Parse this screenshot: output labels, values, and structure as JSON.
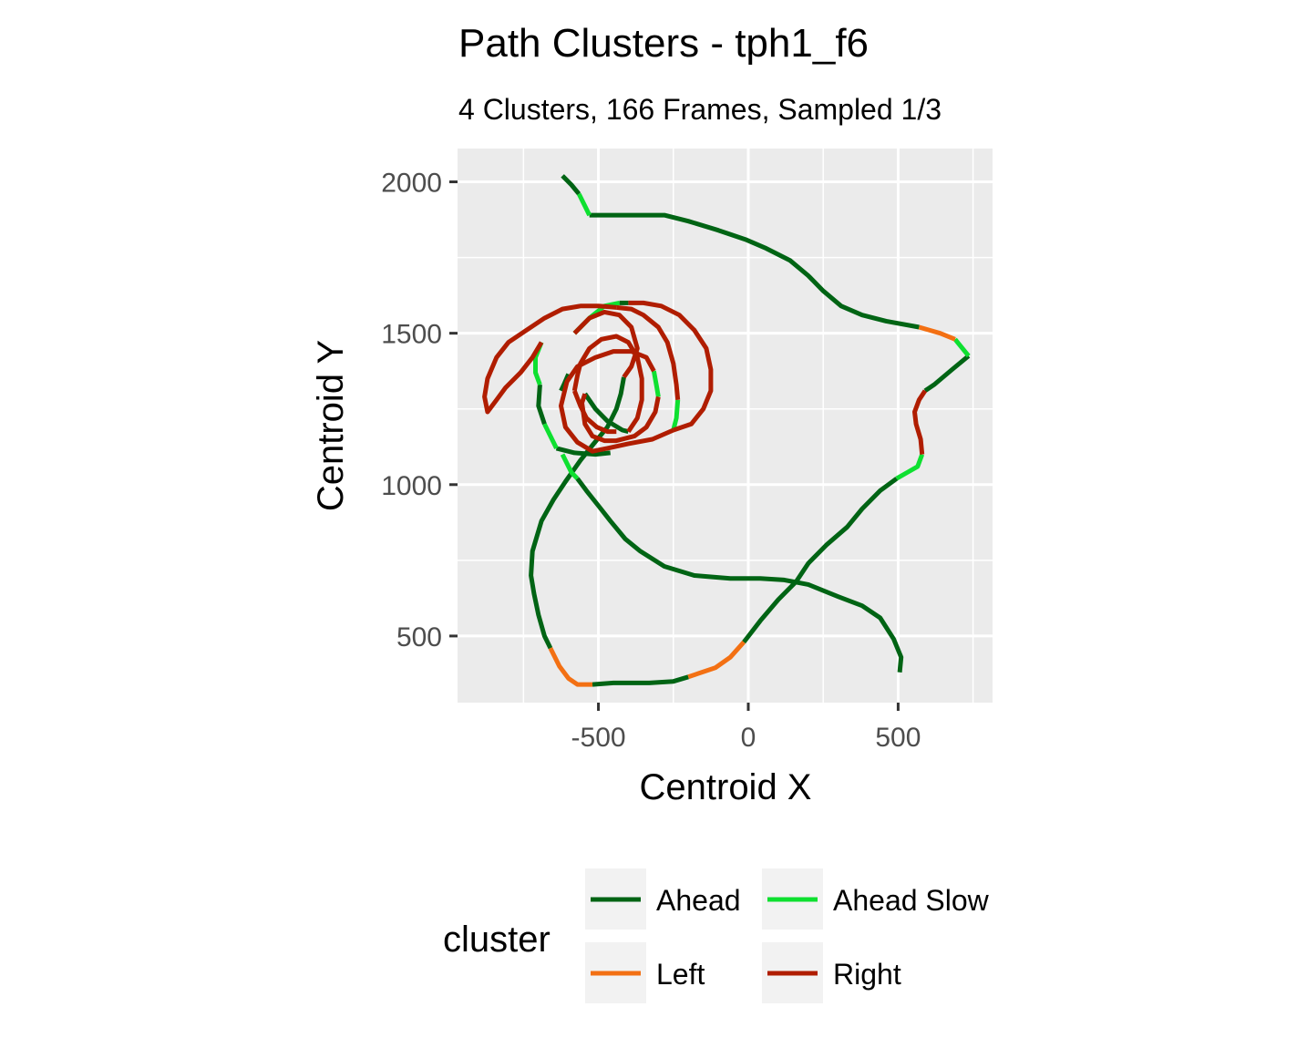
{
  "chart_data": {
    "type": "line",
    "title": "Path Clusters - tph1_f6",
    "subtitle": "4 Clusters, 166 Frames, Sampled 1/3",
    "xlabel": "Centroid X",
    "ylabel": "Centroid Y",
    "xlim": [
      -970,
      815
    ],
    "ylim": [
      280,
      2110
    ],
    "x_ticks": [
      -500,
      0,
      500
    ],
    "x_tick_labels": [
      "-500",
      "0",
      "500"
    ],
    "y_ticks": [
      500,
      1000,
      1500,
      2000
    ],
    "y_tick_labels": [
      "500",
      "1000",
      "1500",
      "2000"
    ],
    "grid": true,
    "legend": {
      "title": "cluster",
      "placement": "bottom",
      "entries": [
        {
          "label": "Ahead",
          "color": "#006414"
        },
        {
          "label": "Ahead Slow",
          "color": "#0ee030"
        },
        {
          "label": "Left",
          "color": "#f37013"
        },
        {
          "label": "Right",
          "color": "#b01d00"
        }
      ]
    },
    "series": [
      {
        "name": "Ahead",
        "color": "#006414",
        "segments": [
          [
            [
              -620,
              2020
            ],
            [
              -590,
              1990
            ],
            [
              -565,
              1960
            ]
          ],
          [
            [
              -530,
              1890
            ],
            [
              -400,
              1890
            ],
            [
              -280,
              1890
            ],
            [
              -200,
              1870
            ],
            [
              -100,
              1840
            ],
            [
              -10,
              1810
            ],
            [
              60,
              1780
            ],
            [
              140,
              1740
            ],
            [
              200,
              1690
            ],
            [
              250,
              1640
            ],
            [
              310,
              1590
            ],
            [
              380,
              1560
            ],
            [
              460,
              1540
            ],
            [
              570,
              1520
            ]
          ],
          [
            [
              735,
              1425
            ],
            [
              680,
              1380
            ],
            [
              620,
              1330
            ],
            [
              590,
              1310
            ]
          ],
          [
            [
              495,
              1020
            ],
            [
              440,
              980
            ],
            [
              380,
              920
            ],
            [
              330,
              860
            ],
            [
              260,
              800
            ],
            [
              200,
              740
            ],
            [
              160,
              680
            ],
            [
              100,
              620
            ],
            [
              40,
              550
            ],
            [
              -15,
              480
            ]
          ],
          [
            [
              -430,
              1600
            ],
            [
              -400,
              1600
            ]
          ],
          [
            [
              -600,
              1365
            ],
            [
              -615,
              1330
            ],
            [
              -625,
              1310
            ]
          ],
          [
            [
              -545,
              1300
            ],
            [
              -510,
              1250
            ],
            [
              -470,
              1210
            ],
            [
              -420,
              1180
            ],
            [
              -400,
              1175
            ]
          ],
          [
            [
              -695,
              1330
            ],
            [
              -700,
              1260
            ],
            [
              -680,
              1200
            ]
          ],
          [
            [
              -640,
              1120
            ],
            [
              -580,
              1105
            ],
            [
              -510,
              1100
            ],
            [
              -460,
              1105
            ]
          ],
          [
            [
              -415,
              1355
            ],
            [
              -425,
              1300
            ],
            [
              -440,
              1250
            ],
            [
              -470,
              1190
            ],
            [
              -520,
              1130
            ],
            [
              -560,
              1080
            ],
            [
              -610,
              1010
            ],
            [
              -650,
              950
            ],
            [
              -690,
              880
            ],
            [
              -720,
              780
            ],
            [
              -725,
              700
            ],
            [
              -715,
              640
            ],
            [
              -700,
              570
            ],
            [
              -680,
              500
            ],
            [
              -660,
              460
            ]
          ],
          [
            [
              -570,
              1020
            ],
            [
              -540,
              980
            ],
            [
              -500,
              930
            ],
            [
              -460,
              880
            ],
            [
              -410,
              820
            ],
            [
              -360,
              780
            ],
            [
              -280,
              730
            ],
            [
              -180,
              700
            ],
            [
              -60,
              690
            ],
            [
              40,
              690
            ],
            [
              120,
              685
            ],
            [
              200,
              670
            ],
            [
              300,
              630
            ],
            [
              380,
              600
            ],
            [
              440,
              560
            ],
            [
              485,
              490
            ],
            [
              510,
              430
            ],
            [
              505,
              380
            ]
          ],
          [
            [
              -520,
              340
            ],
            [
              -450,
              345
            ],
            [
              -330,
              345
            ],
            [
              -250,
              350
            ],
            [
              -200,
              365
            ]
          ]
        ]
      },
      {
        "name": "Ahead Slow",
        "color": "#0ee030",
        "segments": [
          [
            [
              -565,
              1960
            ],
            [
              -545,
              1920
            ],
            [
              -530,
              1890
            ]
          ],
          [
            [
              690,
              1480
            ],
            [
              735,
              1425
            ]
          ],
          [
            [
              580,
              1100
            ],
            [
              565,
              1060
            ],
            [
              530,
              1040
            ],
            [
              495,
              1020
            ]
          ],
          [
            [
              -580,
              1500
            ],
            [
              -530,
              1550
            ],
            [
              -480,
              1590
            ],
            [
              -430,
              1600
            ]
          ],
          [
            [
              -315,
              1375
            ],
            [
              -305,
              1320
            ],
            [
              -300,
              1290
            ]
          ],
          [
            [
              -235,
              1280
            ],
            [
              -240,
              1220
            ],
            [
              -250,
              1180
            ]
          ],
          [
            [
              -680,
              1200
            ],
            [
              -640,
              1120
            ]
          ],
          [
            [
              -620,
              1100
            ],
            [
              -590,
              1040
            ],
            [
              -570,
              1020
            ]
          ],
          [
            [
              -690,
              1470
            ],
            [
              -710,
              1420
            ],
            [
              -710,
              1370
            ],
            [
              -695,
              1330
            ]
          ]
        ]
      },
      {
        "name": "Left",
        "color": "#f37013",
        "segments": [
          [
            [
              570,
              1520
            ],
            [
              640,
              1500
            ],
            [
              690,
              1480
            ]
          ],
          [
            [
              -15,
              480
            ],
            [
              -60,
              430
            ],
            [
              -110,
              395
            ],
            [
              -170,
              375
            ],
            [
              -200,
              365
            ]
          ],
          [
            [
              -660,
              460
            ],
            [
              -630,
              400
            ],
            [
              -600,
              360
            ],
            [
              -570,
              340
            ],
            [
              -520,
              340
            ]
          ]
        ]
      },
      {
        "name": "Right",
        "color": "#b01d00",
        "segments": [
          [
            [
              590,
              1310
            ],
            [
              570,
              1280
            ],
            [
              555,
              1240
            ],
            [
              560,
              1200
            ],
            [
              575,
              1150
            ],
            [
              580,
              1100
            ]
          ],
          [
            [
              -400,
              1600
            ],
            [
              -350,
              1600
            ],
            [
              -290,
              1590
            ],
            [
              -230,
              1560
            ],
            [
              -180,
              1510
            ],
            [
              -140,
              1450
            ],
            [
              -125,
              1380
            ],
            [
              -125,
              1310
            ],
            [
              -150,
              1250
            ],
            [
              -190,
              1200
            ],
            [
              -250,
              1180
            ]
          ],
          [
            [
              -250,
              1180
            ],
            [
              -320,
              1150
            ],
            [
              -400,
              1135
            ],
            [
              -470,
              1120
            ],
            [
              -520,
              1110
            ],
            [
              -570,
              1140
            ],
            [
              -610,
              1190
            ],
            [
              -625,
              1260
            ],
            [
              -605,
              1340
            ],
            [
              -570,
              1390
            ],
            [
              -510,
              1420
            ],
            [
              -450,
              1440
            ],
            [
              -390,
              1440
            ],
            [
              -340,
              1420
            ],
            [
              -315,
              1375
            ]
          ],
          [
            [
              -300,
              1290
            ],
            [
              -310,
              1240
            ],
            [
              -340,
              1190
            ],
            [
              -380,
              1160
            ],
            [
              -440,
              1145
            ],
            [
              -480,
              1145
            ],
            [
              -520,
              1160
            ],
            [
              -545,
              1200
            ],
            [
              -555,
              1270
            ],
            [
              -545,
              1300
            ]
          ],
          [
            [
              -400,
              1175
            ],
            [
              -370,
              1220
            ],
            [
              -355,
              1280
            ],
            [
              -355,
              1350
            ],
            [
              -370,
              1420
            ],
            [
              -400,
              1470
            ],
            [
              -440,
              1490
            ],
            [
              -490,
              1480
            ],
            [
              -530,
              1450
            ],
            [
              -560,
              1400
            ],
            [
              -570,
              1360
            ],
            [
              -580,
              1310
            ]
          ],
          [
            [
              -580,
              1310
            ],
            [
              -560,
              1260
            ],
            [
              -540,
              1220
            ],
            [
              -505,
              1190
            ],
            [
              -470,
              1175
            ],
            [
              -440,
              1175
            ]
          ],
          [
            [
              -415,
              1355
            ],
            [
              -390,
              1390
            ],
            [
              -370,
              1450
            ],
            [
              -390,
              1520
            ],
            [
              -430,
              1560
            ],
            [
              -480,
              1570
            ],
            [
              -530,
              1550
            ],
            [
              -580,
              1500
            ]
          ],
          [
            [
              -690,
              1470
            ],
            [
              -720,
              1420
            ],
            [
              -760,
              1370
            ],
            [
              -810,
              1320
            ],
            [
              -840,
              1280
            ],
            [
              -870,
              1240
            ],
            [
              -880,
              1290
            ],
            [
              -870,
              1350
            ],
            [
              -840,
              1420
            ],
            [
              -800,
              1470
            ],
            [
              -740,
              1510
            ],
            [
              -680,
              1550
            ],
            [
              -620,
              1580
            ],
            [
              -560,
              1590
            ],
            [
              -500,
              1590
            ],
            [
              -440,
              1585
            ]
          ],
          [
            [
              -440,
              1585
            ],
            [
              -390,
              1580
            ],
            [
              -350,
              1560
            ],
            [
              -300,
              1520
            ],
            [
              -270,
              1470
            ],
            [
              -250,
              1400
            ],
            [
              -240,
              1330
            ],
            [
              -235,
              1280
            ]
          ]
        ]
      }
    ]
  }
}
